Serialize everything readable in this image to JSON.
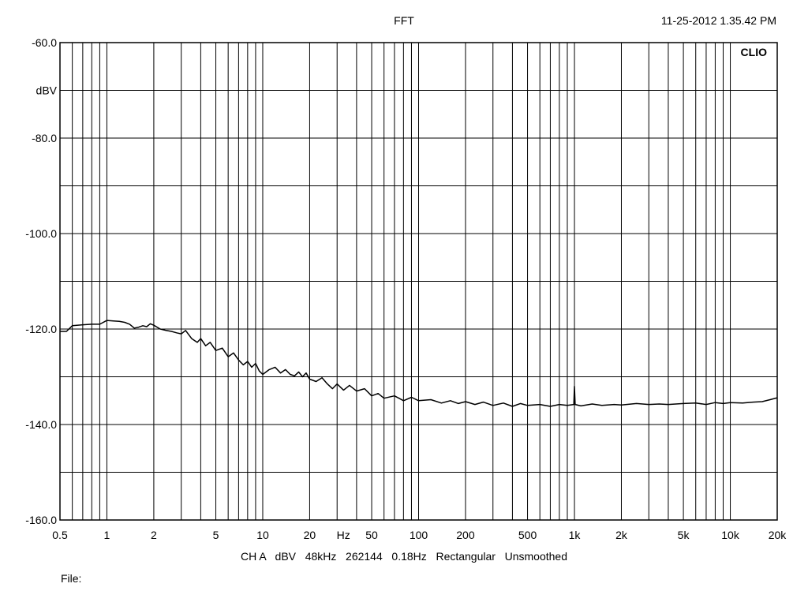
{
  "header": {
    "title": "FFT",
    "timestamp": "11-25-2012 1.35.42 PM"
  },
  "brand_label": "CLIO",
  "settings_line": "CH A   dBV   48kHz   262144   0.18Hz   Rectangular   Unsmoothed",
  "file_label": "File:",
  "colors": {
    "trace": "#000000",
    "grid": "#000000",
    "background": "#ffffff"
  },
  "chart_data": {
    "type": "line",
    "title": "FFT",
    "xlabel": "Hz",
    "ylabel": "dBV",
    "xscale": "log",
    "xlim": [
      0.5,
      20000
    ],
    "ylim": [
      -160,
      -60
    ],
    "grid": true,
    "x_tick_labels": [
      {
        "value": 0.5,
        "label": "0.5"
      },
      {
        "value": 1,
        "label": "1"
      },
      {
        "value": 2,
        "label": "2"
      },
      {
        "value": 5,
        "label": "5"
      },
      {
        "value": 10,
        "label": "10"
      },
      {
        "value": 20,
        "label": "20"
      },
      {
        "value": 50,
        "label": "50"
      },
      {
        "value": 100,
        "label": "100"
      },
      {
        "value": 200,
        "label": "200"
      },
      {
        "value": 500,
        "label": "500"
      },
      {
        "value": 1000,
        "label": "1k"
      },
      {
        "value": 2000,
        "label": "2k"
      },
      {
        "value": 5000,
        "label": "5k"
      },
      {
        "value": 10000,
        "label": "10k"
      },
      {
        "value": 20000,
        "label": "20k"
      }
    ],
    "x_unit_label": {
      "near": 30,
      "label": "Hz"
    },
    "y_tick_labels": [
      {
        "value": -60,
        "label": "-60.0"
      },
      {
        "value": -80,
        "label": "-80.0"
      },
      {
        "value": -100,
        "label": "-100.0"
      },
      {
        "value": -120,
        "label": "-120.0"
      },
      {
        "value": -140,
        "label": "-140.0"
      },
      {
        "value": -160,
        "label": "-160.0"
      }
    ],
    "y_unit_label": {
      "near": -70,
      "label": "dBV"
    },
    "series": [
      {
        "points": [
          [
            0.5,
            -120.5
          ],
          [
            0.55,
            -120.5
          ],
          [
            0.6,
            -119.3
          ],
          [
            0.7,
            -119.1
          ],
          [
            0.8,
            -119.0
          ],
          [
            0.9,
            -119.0
          ],
          [
            1.0,
            -118.2
          ],
          [
            1.1,
            -118.3
          ],
          [
            1.2,
            -118.4
          ],
          [
            1.3,
            -118.6
          ],
          [
            1.4,
            -119.0
          ],
          [
            1.5,
            -119.8
          ],
          [
            1.6,
            -119.6
          ],
          [
            1.7,
            -119.3
          ],
          [
            1.8,
            -119.5
          ],
          [
            1.9,
            -118.9
          ],
          [
            2.0,
            -119.2
          ],
          [
            2.2,
            -120.0
          ],
          [
            2.4,
            -120.3
          ],
          [
            2.6,
            -120.5
          ],
          [
            2.8,
            -120.8
          ],
          [
            3.0,
            -121.0
          ],
          [
            3.2,
            -120.3
          ],
          [
            3.5,
            -122.0
          ],
          [
            3.8,
            -122.8
          ],
          [
            4.0,
            -122.0
          ],
          [
            4.3,
            -123.5
          ],
          [
            4.6,
            -122.8
          ],
          [
            5.0,
            -124.5
          ],
          [
            5.5,
            -124.0
          ],
          [
            6.0,
            -125.8
          ],
          [
            6.5,
            -125.0
          ],
          [
            7.0,
            -126.5
          ],
          [
            7.5,
            -127.5
          ],
          [
            8.0,
            -126.8
          ],
          [
            8.5,
            -128.0
          ],
          [
            9.0,
            -127.2
          ],
          [
            9.5,
            -128.8
          ],
          [
            10,
            -129.5
          ],
          [
            11,
            -128.5
          ],
          [
            12,
            -128.0
          ],
          [
            13,
            -129.2
          ],
          [
            14,
            -128.5
          ],
          [
            15,
            -129.5
          ],
          [
            16,
            -129.8
          ],
          [
            17,
            -129.0
          ],
          [
            18,
            -130.0
          ],
          [
            19,
            -129.2
          ],
          [
            20,
            -130.5
          ],
          [
            22,
            -131.0
          ],
          [
            24,
            -130.2
          ],
          [
            26,
            -131.5
          ],
          [
            28,
            -132.5
          ],
          [
            30,
            -131.5
          ],
          [
            33,
            -132.8
          ],
          [
            36,
            -131.8
          ],
          [
            40,
            -133.0
          ],
          [
            45,
            -132.5
          ],
          [
            50,
            -134.0
          ],
          [
            55,
            -133.5
          ],
          [
            60,
            -134.5
          ],
          [
            70,
            -134.0
          ],
          [
            80,
            -135.0
          ],
          [
            90,
            -134.3
          ],
          [
            100,
            -135.0
          ],
          [
            120,
            -134.8
          ],
          [
            140,
            -135.5
          ],
          [
            160,
            -135.0
          ],
          [
            180,
            -135.6
          ],
          [
            200,
            -135.2
          ],
          [
            230,
            -135.8
          ],
          [
            260,
            -135.3
          ],
          [
            300,
            -136.0
          ],
          [
            350,
            -135.5
          ],
          [
            400,
            -136.2
          ],
          [
            450,
            -135.6
          ],
          [
            500,
            -136.0
          ],
          [
            600,
            -135.8
          ],
          [
            700,
            -136.2
          ],
          [
            800,
            -135.8
          ],
          [
            900,
            -136.0
          ],
          [
            990,
            -135.8
          ],
          [
            1000,
            -132.0
          ],
          [
            1010,
            -135.8
          ],
          [
            1100,
            -136.1
          ],
          [
            1300,
            -135.7
          ],
          [
            1500,
            -136.0
          ],
          [
            1800,
            -135.8
          ],
          [
            2000,
            -135.9
          ],
          [
            2500,
            -135.6
          ],
          [
            3000,
            -135.8
          ],
          [
            3500,
            -135.7
          ],
          [
            4000,
            -135.8
          ],
          [
            5000,
            -135.6
          ],
          [
            6000,
            -135.5
          ],
          [
            7000,
            -135.8
          ],
          [
            8000,
            -135.4
          ],
          [
            9000,
            -135.6
          ],
          [
            10000,
            -135.4
          ],
          [
            12000,
            -135.5
          ],
          [
            14000,
            -135.3
          ],
          [
            16000,
            -135.2
          ],
          [
            18000,
            -134.8
          ],
          [
            20000,
            -134.4
          ]
        ]
      }
    ]
  }
}
